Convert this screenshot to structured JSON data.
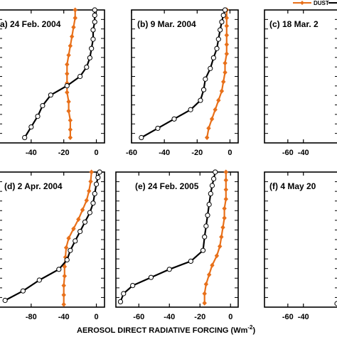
{
  "xlabel": "AEROSOL DIRECT RADIATIVE FORCING (Wm",
  "xlabel_sup": "-2",
  "xlabel_close": ")",
  "legend": {
    "dust_label": "DUST"
  },
  "colors": {
    "dust": "#E8701A",
    "total": "#000000"
  },
  "chart_data": [
    {
      "type": "line",
      "title": "(a) 24 Feb. 2004",
      "xlim": [
        -60,
        5
      ],
      "ylim": [
        0,
        1
      ],
      "xticks": [
        -40,
        -20,
        0
      ],
      "xtick_labels": [
        "-40",
        "-20",
        "0"
      ],
      "series": [
        {
          "name": "DUST",
          "color": "#E8701A",
          "marker": "diamond",
          "x": [
            -16,
            -16,
            -16,
            -17,
            -17,
            -18,
            -18,
            -18,
            -18,
            -17,
            -16,
            -15,
            -14,
            -13,
            -13
          ],
          "y": [
            0.04,
            0.1,
            0.17,
            0.24,
            0.31,
            0.38,
            0.45,
            0.52,
            0.59,
            0.66,
            0.73,
            0.8,
            0.87,
            0.94,
            1.0
          ]
        },
        {
          "color": "#000000",
          "marker": "circle",
          "x": [
            -44,
            -40,
            -36,
            -33,
            -28,
            -18,
            -10,
            -6,
            -4,
            -3,
            -2,
            -2,
            -1,
            -1,
            -1
          ],
          "y": [
            0.04,
            0.12,
            0.2,
            0.28,
            0.36,
            0.43,
            0.5,
            0.57,
            0.64,
            0.71,
            0.78,
            0.85,
            0.91,
            0.96,
            1.0
          ]
        }
      ]
    },
    {
      "type": "line",
      "title": "(b) 9 Mar. 2004",
      "xlim": [
        -60,
        5
      ],
      "ylim": [
        0,
        1
      ],
      "xticks": [
        -60,
        -40,
        -20,
        0
      ],
      "xtick_labels": [
        "-60",
        "-40",
        "-20",
        "0"
      ],
      "series": [
        {
          "name": "DUST",
          "color": "#E8701A",
          "marker": "diamond",
          "x": [
            -14,
            -13,
            -11,
            -9,
            -7,
            -5,
            -4,
            -3,
            -3,
            -2,
            -2,
            -2,
            -2,
            -2,
            -2
          ],
          "y": [
            0.04,
            0.11,
            0.18,
            0.25,
            0.32,
            0.39,
            0.46,
            0.53,
            0.6,
            0.67,
            0.74,
            0.81,
            0.88,
            0.94,
            1.0
          ]
        },
        {
          "color": "#000000",
          "marker": "circle",
          "x": [
            -54,
            -44,
            -34,
            -24,
            -18,
            -16,
            -15,
            -12,
            -10,
            -8,
            -7,
            -6,
            -5,
            -4,
            -3
          ],
          "y": [
            0.04,
            0.11,
            0.18,
            0.25,
            0.32,
            0.4,
            0.48,
            0.56,
            0.64,
            0.71,
            0.78,
            0.85,
            0.91,
            0.96,
            1.0
          ]
        }
      ]
    },
    {
      "type": "line",
      "title": "(c) 18 Mar. 2",
      "xlim": [
        -90,
        5
      ],
      "ylim": [
        0,
        1
      ],
      "xticks": [
        -60,
        -40
      ],
      "xtick_labels": [
        "-60",
        "-40"
      ],
      "series": []
    },
    {
      "type": "line",
      "title": "(d) 2 Apr. 2004",
      "xlim": [
        -120,
        10
      ],
      "ylim": [
        0,
        1
      ],
      "xticks": [
        -80,
        -40,
        0
      ],
      "xtick_labels": [
        "-80",
        "-40",
        "0"
      ],
      "series": [
        {
          "name": "DUST",
          "color": "#E8701A",
          "marker": "diamond",
          "x": [
            -40,
            -40,
            -40,
            -39,
            -39,
            -38,
            -37,
            -34,
            -28,
            -22,
            -17,
            -12,
            -9,
            -7,
            -6
          ],
          "y": [
            0.02,
            0.09,
            0.16,
            0.23,
            0.3,
            0.37,
            0.44,
            0.51,
            0.58,
            0.65,
            0.72,
            0.79,
            0.86,
            0.93,
            1.0
          ]
        },
        {
          "color": "#000000",
          "marker": "circle",
          "x": [
            -112,
            -90,
            -70,
            -46,
            -36,
            -32,
            -26,
            -20,
            -14,
            -8,
            -4,
            -2,
            0,
            2,
            4
          ],
          "y": [
            0.05,
            0.12,
            0.2,
            0.28,
            0.35,
            0.42,
            0.49,
            0.56,
            0.63,
            0.7,
            0.77,
            0.84,
            0.91,
            0.96,
            1.0
          ]
        }
      ]
    },
    {
      "type": "line",
      "title": "(e) 24 Feb. 2005",
      "xlim": [
        -75,
        5
      ],
      "ylim": [
        0,
        1
      ],
      "xticks": [
        -60,
        -40,
        -20,
        0
      ],
      "xtick_labels": [
        "-60",
        "-40",
        "-20",
        "0"
      ],
      "series": [
        {
          "name": "DUST",
          "color": "#E8701A",
          "marker": "diamond",
          "x": [
            -17,
            -17,
            -16,
            -14,
            -12,
            -9,
            -7,
            -6,
            -5,
            -4,
            -4,
            -3,
            -3,
            -3,
            -3
          ],
          "y": [
            0.03,
            0.1,
            0.17,
            0.24,
            0.31,
            0.38,
            0.45,
            0.52,
            0.59,
            0.66,
            0.73,
            0.8,
            0.87,
            0.94,
            1.0
          ]
        },
        {
          "color": "#000000",
          "marker": "circle",
          "x": [
            -72,
            -70,
            -64,
            -52,
            -40,
            -26,
            -18,
            -17,
            -16,
            -15,
            -14,
            -13,
            -12,
            -11,
            -10
          ],
          "y": [
            0.04,
            0.1,
            0.16,
            0.22,
            0.28,
            0.34,
            0.42,
            0.52,
            0.6,
            0.68,
            0.76,
            0.84,
            0.9,
            0.95,
            1.0
          ]
        }
      ]
    },
    {
      "type": "line",
      "title": "(f) 4 May 20",
      "xlim": [
        -90,
        5
      ],
      "ylim": [
        0,
        1
      ],
      "xticks": [
        -60,
        -40
      ],
      "xtick_labels": [
        "-60",
        "-40"
      ],
      "series": []
    }
  ]
}
